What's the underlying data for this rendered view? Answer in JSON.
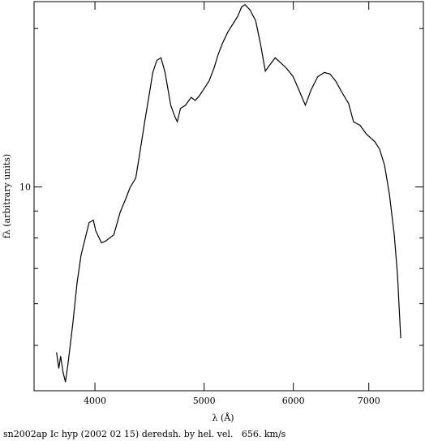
{
  "chart_data": {
    "type": "line",
    "xlabel": "λ (Å)",
    "ylabel": "fλ (arbitrary units)",
    "caption": "sn2002ap Ic hyp (2002 02 15) deredsh. by hel. vel.   656. km/s",
    "xscale": "log",
    "yscale": "log",
    "xlim": [
      3532,
      7826
    ],
    "xticks": [
      4000,
      5000,
      6000,
      7000
    ],
    "ylim": [
      4.1,
      22.5
    ],
    "yticks": [
      10
    ],
    "yminorticks": [
      5,
      6,
      7,
      8,
      9,
      20
    ],
    "series": [
      {
        "color": "#000000",
        "x": [
          3698,
          3715,
          3729,
          3748,
          3766,
          3785,
          3823,
          3856,
          3888,
          3920,
          3953,
          3987,
          4006,
          4054,
          4087,
          4157,
          4212,
          4262,
          4297,
          4348,
          4384,
          4428,
          4465,
          4502,
          4539,
          4578,
          4616,
          4670,
          4710,
          4733,
          4764,
          4813,
          4869,
          4910,
          4951,
          4992,
          5051,
          5101,
          5143,
          5188,
          5248,
          5310,
          5355,
          5399,
          5436,
          5491,
          5555,
          5610,
          5666,
          5723,
          5781,
          5849,
          5918,
          5998,
          6067,
          6149,
          6222,
          6306,
          6391,
          6465,
          6541,
          6629,
          6718,
          6785,
          6875,
          6967,
          7085,
          7156,
          7229,
          7301,
          7374,
          7423,
          7472
        ],
        "values": [
          4.85,
          4.52,
          4.77,
          4.44,
          4.26,
          4.6,
          5.5,
          6.56,
          7.42,
          7.97,
          8.56,
          8.65,
          8.26,
          7.83,
          7.89,
          8.11,
          8.96,
          9.52,
          9.97,
          10.4,
          11.6,
          13.3,
          14.8,
          16.5,
          17.4,
          17.6,
          16.5,
          14.3,
          13.6,
          13.3,
          14.1,
          14.3,
          14.8,
          14.6,
          14.9,
          15.3,
          15.9,
          16.8,
          17.8,
          18.7,
          19.7,
          20.5,
          21.1,
          22.0,
          22.2,
          21.7,
          20.7,
          18.7,
          16.6,
          17.1,
          17.6,
          17.2,
          16.8,
          16.2,
          15.3,
          14.3,
          15.3,
          16.2,
          16.5,
          16.4,
          15.9,
          15.1,
          14.4,
          13.3,
          13.1,
          12.6,
          12.2,
          11.8,
          11.0,
          9.69,
          8.11,
          6.8,
          5.16
        ]
      }
    ]
  }
}
